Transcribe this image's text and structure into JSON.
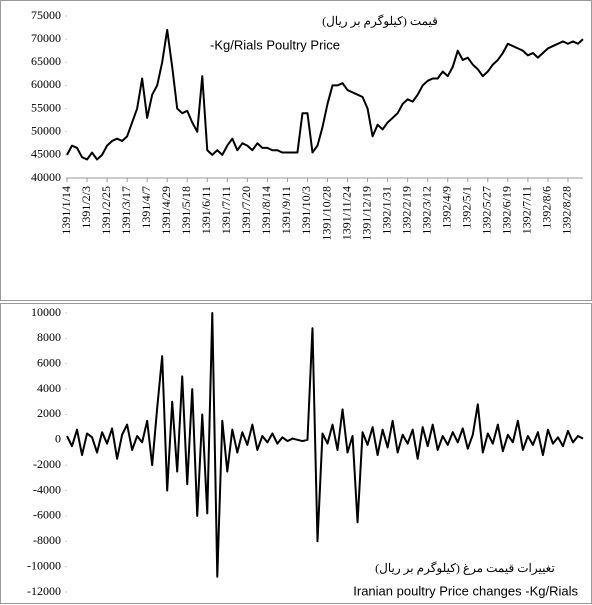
{
  "chart_data": [
    {
      "type": "line",
      "title": "قیمت (کیلوگرم بر ریال)",
      "subtitle": "-Kg/Rials Poultry Price",
      "color": "#000000",
      "categories": [
        "1391/1/14",
        null,
        null,
        null,
        "1391/2/3",
        null,
        null,
        null,
        "1391/2/25",
        null,
        null,
        null,
        "1391/3/17",
        null,
        null,
        null,
        "1391/4/7",
        null,
        null,
        null,
        "1391/4/29",
        null,
        null,
        null,
        "1391/5/18",
        null,
        null,
        null,
        "1391/6/11",
        null,
        null,
        null,
        "1391/7/11",
        null,
        null,
        null,
        "1391/7/20",
        null,
        null,
        null,
        "1391/8/14",
        null,
        null,
        null,
        "1391/9/11",
        null,
        null,
        null,
        "1391/10/3",
        null,
        null,
        null,
        "1391/10/28",
        null,
        null,
        null,
        "1391/11/24",
        null,
        null,
        null,
        "1391/12/19",
        null,
        null,
        null,
        "1392/1/31",
        null,
        null,
        null,
        "1392/2/19",
        null,
        null,
        null,
        "1392/3/12",
        null,
        null,
        null,
        "1392/4/9",
        null,
        null,
        null,
        "1392/5/1",
        null,
        null,
        null,
        "1392/5/27",
        null,
        null,
        null,
        "1392/6/19",
        null,
        null,
        null,
        "1392/7/11",
        null,
        null,
        null,
        "1392/8/6",
        null,
        null,
        null,
        "1392/8/28",
        null,
        null,
        null
      ],
      "values": [
        45000,
        47000,
        46500,
        44500,
        44000,
        45500,
        44000,
        45000,
        47000,
        48000,
        48500,
        48000,
        49000,
        52000,
        55000,
        61500,
        53000,
        58000,
        60000,
        65000,
        72000,
        64000,
        55000,
        54000,
        54500,
        52000,
        50000,
        62000,
        46000,
        45000,
        46000,
        45000,
        47000,
        48500,
        46000,
        47500,
        47000,
        46000,
        47500,
        46500,
        46500,
        46000,
        46000,
        45500,
        45500,
        45500,
        45500,
        54000,
        54000,
        45500,
        47000,
        51000,
        56000,
        60000,
        60000,
        60500,
        59000,
        58500,
        58000,
        57500,
        55000,
        49000,
        51500,
        50500,
        52000,
        53000,
        54000,
        56000,
        57000,
        56500,
        58000,
        60000,
        61000,
        61500,
        61500,
        63000,
        62000,
        64000,
        67500,
        65500,
        66000,
        64500,
        63500,
        62000,
        63000,
        64500,
        65500,
        67000,
        69000,
        68500,
        68000,
        67500,
        66500,
        67000,
        66000,
        67000,
        68000,
        68500,
        69000,
        69500,
        69000,
        69500,
        69000,
        70000
      ],
      "ylim": [
        40000,
        75000
      ],
      "yticks": [
        40000,
        45000,
        50000,
        55000,
        60000,
        65000,
        70000,
        75000
      ]
    },
    {
      "type": "line",
      "title": "تغییرات قیمت مرغ (کیلوگرم بر ریال)",
      "subtitle": "Iranian poultry Price changes -Kg/Rials",
      "color": "#000000",
      "values": [
        300,
        -500,
        800,
        -1200,
        500,
        200,
        -1000,
        600,
        -300,
        900,
        -1500,
        400,
        1200,
        -800,
        300,
        -200,
        1500,
        -2000,
        2500,
        6600,
        -4000,
        3000,
        -2500,
        5000,
        -3500,
        4000,
        -6000,
        2000,
        -5800,
        10000,
        -10800,
        1500,
        -2500,
        800,
        -1000,
        600,
        -400,
        1200,
        -800,
        300,
        -200,
        500,
        -300,
        200,
        -100,
        100,
        0,
        -100,
        0,
        8800,
        -8000,
        500,
        -300,
        1200,
        -800,
        2400,
        -1000,
        300,
        -6500,
        600,
        -400,
        1000,
        -1200,
        800,
        -600,
        1500,
        -1000,
        400,
        -300,
        800,
        -1500,
        1000,
        -500,
        1200,
        -800,
        300,
        -400,
        600,
        -200,
        900,
        -700,
        400,
        2800,
        -1000,
        500,
        -300,
        1200,
        -900,
        400,
        -200,
        1500,
        -800,
        300,
        -400,
        600,
        -1200,
        800,
        -300,
        200,
        -500,
        700,
        -200,
        300,
        100
      ],
      "ylim": [
        -12000,
        10000
      ],
      "yticks": [
        -12000,
        -10000,
        -8000,
        -6000,
        -4000,
        -2000,
        0,
        2000,
        4000,
        6000,
        8000,
        10000
      ]
    }
  ]
}
